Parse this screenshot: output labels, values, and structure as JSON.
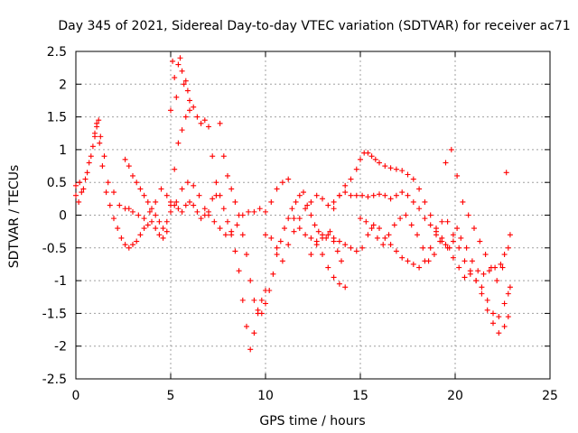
{
  "chart_data": {
    "type": "scatter",
    "title": "Day 345 of 2021, Sidereal Day-to-day VTEC variation (SDTVAR) for receiver ac71",
    "xlabel": "GPS time / hours",
    "ylabel": "SDTVAR / TECUs",
    "xlim": [
      0,
      25
    ],
    "ylim": [
      -2.5,
      2.5
    ],
    "xticks": [
      0,
      5,
      10,
      15,
      20,
      25
    ],
    "yticks": [
      2.5,
      2,
      1.5,
      1,
      0.5,
      0,
      -0.5,
      -1,
      -1.5,
      -2,
      -2.5
    ],
    "grid": true,
    "marker": "+",
    "color": "#ff0000",
    "series": [
      {
        "name": "s1",
        "x": [
          0,
          0.2,
          0.4,
          0.6,
          0.8,
          1.0,
          1.1,
          1.2,
          1.3,
          1.5,
          1.7,
          2.0,
          2.3,
          2.6,
          2.8,
          3.0,
          3.3,
          3.6,
          3.9,
          4.2,
          4.5,
          4.8,
          5.0,
          5.3,
          5.6,
          5.9,
          6.2,
          6.5,
          6.8,
          7.0,
          7.3,
          7.6,
          7.9,
          8.2,
          8.5,
          8.8,
          9.1,
          9.4,
          9.7,
          10.0,
          10.3,
          10.6,
          10.9,
          11.2,
          11.5,
          11.8,
          12.1,
          12.4,
          12.7,
          13.0,
          13.3,
          13.6,
          13.9,
          14.2
        ],
        "y": [
          0.45,
          0.5,
          0.4,
          0.65,
          0.9,
          1.2,
          1.4,
          1.45,
          1.2,
          0.9,
          0.5,
          0.35,
          0.15,
          0.1,
          0.1,
          0.05,
          0.0,
          -0.05,
          0.05,
          0.2,
          0.4,
          0.3,
          0.15,
          0.2,
          0.4,
          0.5,
          0.45,
          0.3,
          0.1,
          0.0,
          -0.1,
          -0.2,
          -0.3,
          -0.25,
          -0.15,
          0.0,
          0.05,
          0.05,
          0.1,
          0.05,
          0.2,
          0.4,
          0.5,
          0.55,
          -0.05,
          -0.2,
          -0.3,
          -0.35,
          -0.4,
          -0.6,
          -0.8,
          -0.95,
          -1.05,
          -1.1
        ]
      },
      {
        "name": "s2",
        "x": [
          0,
          0.15,
          0.3,
          0.5,
          0.7,
          0.9,
          1.0,
          1.1,
          1.25,
          1.4,
          1.6,
          1.8,
          2.0,
          2.2,
          2.4,
          2.6,
          2.8,
          3.0,
          3.2,
          3.4,
          3.6,
          3.8,
          4.0,
          4.2,
          4.4,
          4.6,
          4.8,
          5.0,
          5.2,
          5.4,
          5.6,
          5.8,
          6.0,
          6.2,
          6.4,
          6.6,
          6.8,
          7.0,
          7.2,
          7.4,
          7.6,
          7.8,
          8.0,
          8.2,
          8.4,
          8.6,
          8.8,
          9.0,
          9.2,
          9.4,
          9.6,
          9.8,
          10.0
        ],
        "y": [
          0.3,
          0.2,
          0.35,
          0.55,
          0.8,
          1.05,
          1.25,
          1.35,
          1.1,
          0.75,
          0.35,
          0.15,
          -0.05,
          -0.2,
          -0.35,
          -0.45,
          -0.5,
          -0.45,
          -0.4,
          -0.3,
          -0.2,
          -0.15,
          -0.1,
          -0.2,
          -0.3,
          -0.35,
          -0.25,
          0.2,
          0.7,
          1.1,
          1.3,
          1.5,
          1.6,
          1.65,
          1.5,
          1.4,
          1.45,
          1.35,
          0.9,
          0.5,
          0.3,
          0.1,
          -0.1,
          -0.3,
          -0.55,
          -0.85,
          -1.3,
          -1.7,
          -2.05,
          -1.8,
          -1.5,
          -1.3,
          -1.15
        ]
      },
      {
        "name": "s3",
        "x": [
          2.6,
          2.8,
          3.0,
          3.2,
          3.4,
          3.6,
          3.8,
          4.0,
          4.2,
          4.4,
          4.6,
          4.8,
          5.0,
          5.2,
          5.4,
          5.6,
          5.8,
          6.0,
          6.2,
          6.4,
          6.6,
          6.8,
          7.0,
          7.2,
          7.4,
          7.6,
          7.8,
          8.0,
          8.2,
          8.4,
          8.6,
          8.8,
          9.0,
          9.2,
          9.4,
          9.6,
          9.8,
          10.0,
          10.2,
          10.4,
          10.6,
          10.8,
          11.0,
          11.2,
          11.4,
          11.6,
          11.8,
          12.0,
          12.2,
          12.4,
          12.6,
          12.8,
          13.0,
          13.2,
          13.4,
          13.6,
          13.8,
          14.0
        ],
        "y": [
          0.85,
          0.75,
          0.6,
          0.5,
          0.4,
          0.3,
          0.2,
          0.1,
          0.0,
          -0.1,
          -0.2,
          -0.1,
          0.05,
          0.15,
          0.1,
          0.05,
          0.15,
          0.2,
          0.15,
          0.05,
          -0.05,
          0.0,
          0.05,
          0.25,
          0.3,
          1.4,
          0.9,
          0.6,
          0.4,
          0.2,
          0.0,
          -0.3,
          -0.6,
          -1.0,
          -1.3,
          -1.45,
          -1.5,
          -1.35,
          -1.15,
          -0.9,
          -0.6,
          -0.4,
          -0.2,
          -0.05,
          0.1,
          0.2,
          0.3,
          0.35,
          0.15,
          0.0,
          -0.15,
          -0.25,
          -0.3,
          -0.35,
          -0.25,
          -0.4,
          -0.55,
          -0.7
        ]
      },
      {
        "name": "s4",
        "x": [
          5.0,
          5.1,
          5.2,
          5.3,
          5.4,
          5.5,
          5.6,
          5.7,
          5.8,
          5.9,
          6.0
        ],
        "y": [
          1.6,
          2.35,
          2.1,
          1.8,
          2.3,
          2.4,
          2.2,
          2.0,
          2.05,
          1.9,
          1.75
        ]
      },
      {
        "name": "s5",
        "x": [
          10.0,
          10.3,
          10.6,
          10.9,
          11.2,
          11.5,
          11.8,
          12.1,
          12.4,
          12.7,
          13.0,
          13.3,
          13.6,
          13.9,
          14.2,
          14.5,
          14.8,
          15.1,
          15.4,
          15.7,
          16.0,
          16.3,
          16.6,
          16.9,
          17.2,
          17.5,
          17.8,
          18.1,
          18.4,
          18.7,
          19.0,
          19.3,
          19.6,
          19.9,
          20.2,
          20.5,
          20.8,
          21.1,
          21.4,
          21.7,
          22.0,
          22.3,
          22.6,
          22.8,
          22.9
        ],
        "y": [
          -0.3,
          -0.35,
          -0.5,
          -0.7,
          -0.45,
          -0.25,
          -0.05,
          0.1,
          0.2,
          0.3,
          0.25,
          0.15,
          0.2,
          0.3,
          0.35,
          0.3,
          0.3,
          0.3,
          0.28,
          0.3,
          0.32,
          0.3,
          0.25,
          0.3,
          0.35,
          0.3,
          0.2,
          0.1,
          -0.05,
          -0.15,
          -0.25,
          -0.35,
          -0.5,
          -0.65,
          -0.8,
          -0.95,
          -0.9,
          -1.0,
          -1.1,
          -1.3,
          -1.5,
          -1.55,
          -1.35,
          -1.2,
          -1.1
        ]
      },
      {
        "name": "s6",
        "x": [
          12.4,
          12.7,
          13.0,
          13.3,
          13.6,
          13.9,
          14.2,
          14.5,
          14.8,
          15.1,
          15.4,
          15.7,
          16.0,
          16.3,
          16.6,
          16.9,
          17.2,
          17.5,
          17.8,
          18.1,
          18.4,
          18.7,
          19.0,
          19.3,
          19.6,
          19.9,
          20.2,
          20.5,
          20.8,
          21.1,
          21.4,
          21.7,
          22.0,
          22.3,
          22.6,
          22.8
        ],
        "y": [
          -0.6,
          -0.45,
          -0.35,
          -0.3,
          -0.35,
          -0.4,
          -0.45,
          -0.5,
          -0.55,
          -0.5,
          -0.3,
          -0.15,
          -0.2,
          -0.35,
          -0.45,
          -0.55,
          -0.65,
          -0.7,
          -0.75,
          -0.8,
          -0.7,
          -0.5,
          -0.3,
          -0.1,
          -0.1,
          -0.3,
          -0.5,
          -0.7,
          -0.85,
          -1.0,
          -1.2,
          -1.45,
          -1.65,
          -1.8,
          -1.7,
          -1.55
        ]
      },
      {
        "name": "s7",
        "x": [
          13.6,
          13.9,
          14.2,
          14.5,
          14.8,
          15.0,
          15.2,
          15.4,
          15.6,
          15.8,
          16.0,
          16.3,
          16.6,
          16.9,
          17.2,
          17.5,
          17.8,
          18.1,
          18.4,
          18.7,
          19.0,
          19.3,
          19.5,
          19.7,
          19.9,
          20.1,
          20.3,
          20.6,
          20.9,
          21.2,
          21.5,
          21.8,
          22.1,
          22.4,
          22.6,
          22.8,
          22.9
        ],
        "y": [
          0.1,
          0.3,
          0.45,
          0.55,
          0.7,
          0.85,
          0.95,
          0.95,
          0.9,
          0.85,
          0.8,
          0.75,
          0.72,
          0.7,
          0.68,
          0.62,
          0.55,
          0.4,
          0.2,
          0.0,
          -0.2,
          -0.4,
          -0.45,
          -0.5,
          -0.4,
          -0.2,
          -0.35,
          -0.5,
          -0.7,
          -0.85,
          -0.9,
          -0.85,
          -0.8,
          -0.75,
          -0.6,
          -0.5,
          -0.3
        ]
      },
      {
        "name": "s8",
        "x": [
          15.0,
          15.3,
          15.6,
          15.9,
          16.2,
          16.5,
          16.8,
          17.1,
          17.4,
          17.7,
          18.0,
          18.3,
          18.6,
          18.9,
          19.2,
          19.5,
          19.8,
          20.1,
          20.4,
          20.7,
          21.0,
          21.3,
          21.6,
          21.9,
          22.2,
          22.5,
          22.7
        ],
        "y": [
          -0.05,
          -0.1,
          -0.2,
          -0.35,
          -0.45,
          -0.3,
          -0.15,
          -0.05,
          0.0,
          -0.15,
          -0.3,
          -0.5,
          -0.7,
          -0.6,
          -0.4,
          0.8,
          1.0,
          0.6,
          0.2,
          0.0,
          -0.2,
          -0.4,
          -0.6,
          -0.8,
          -1.0,
          -0.8,
          0.65
        ]
      }
    ]
  }
}
